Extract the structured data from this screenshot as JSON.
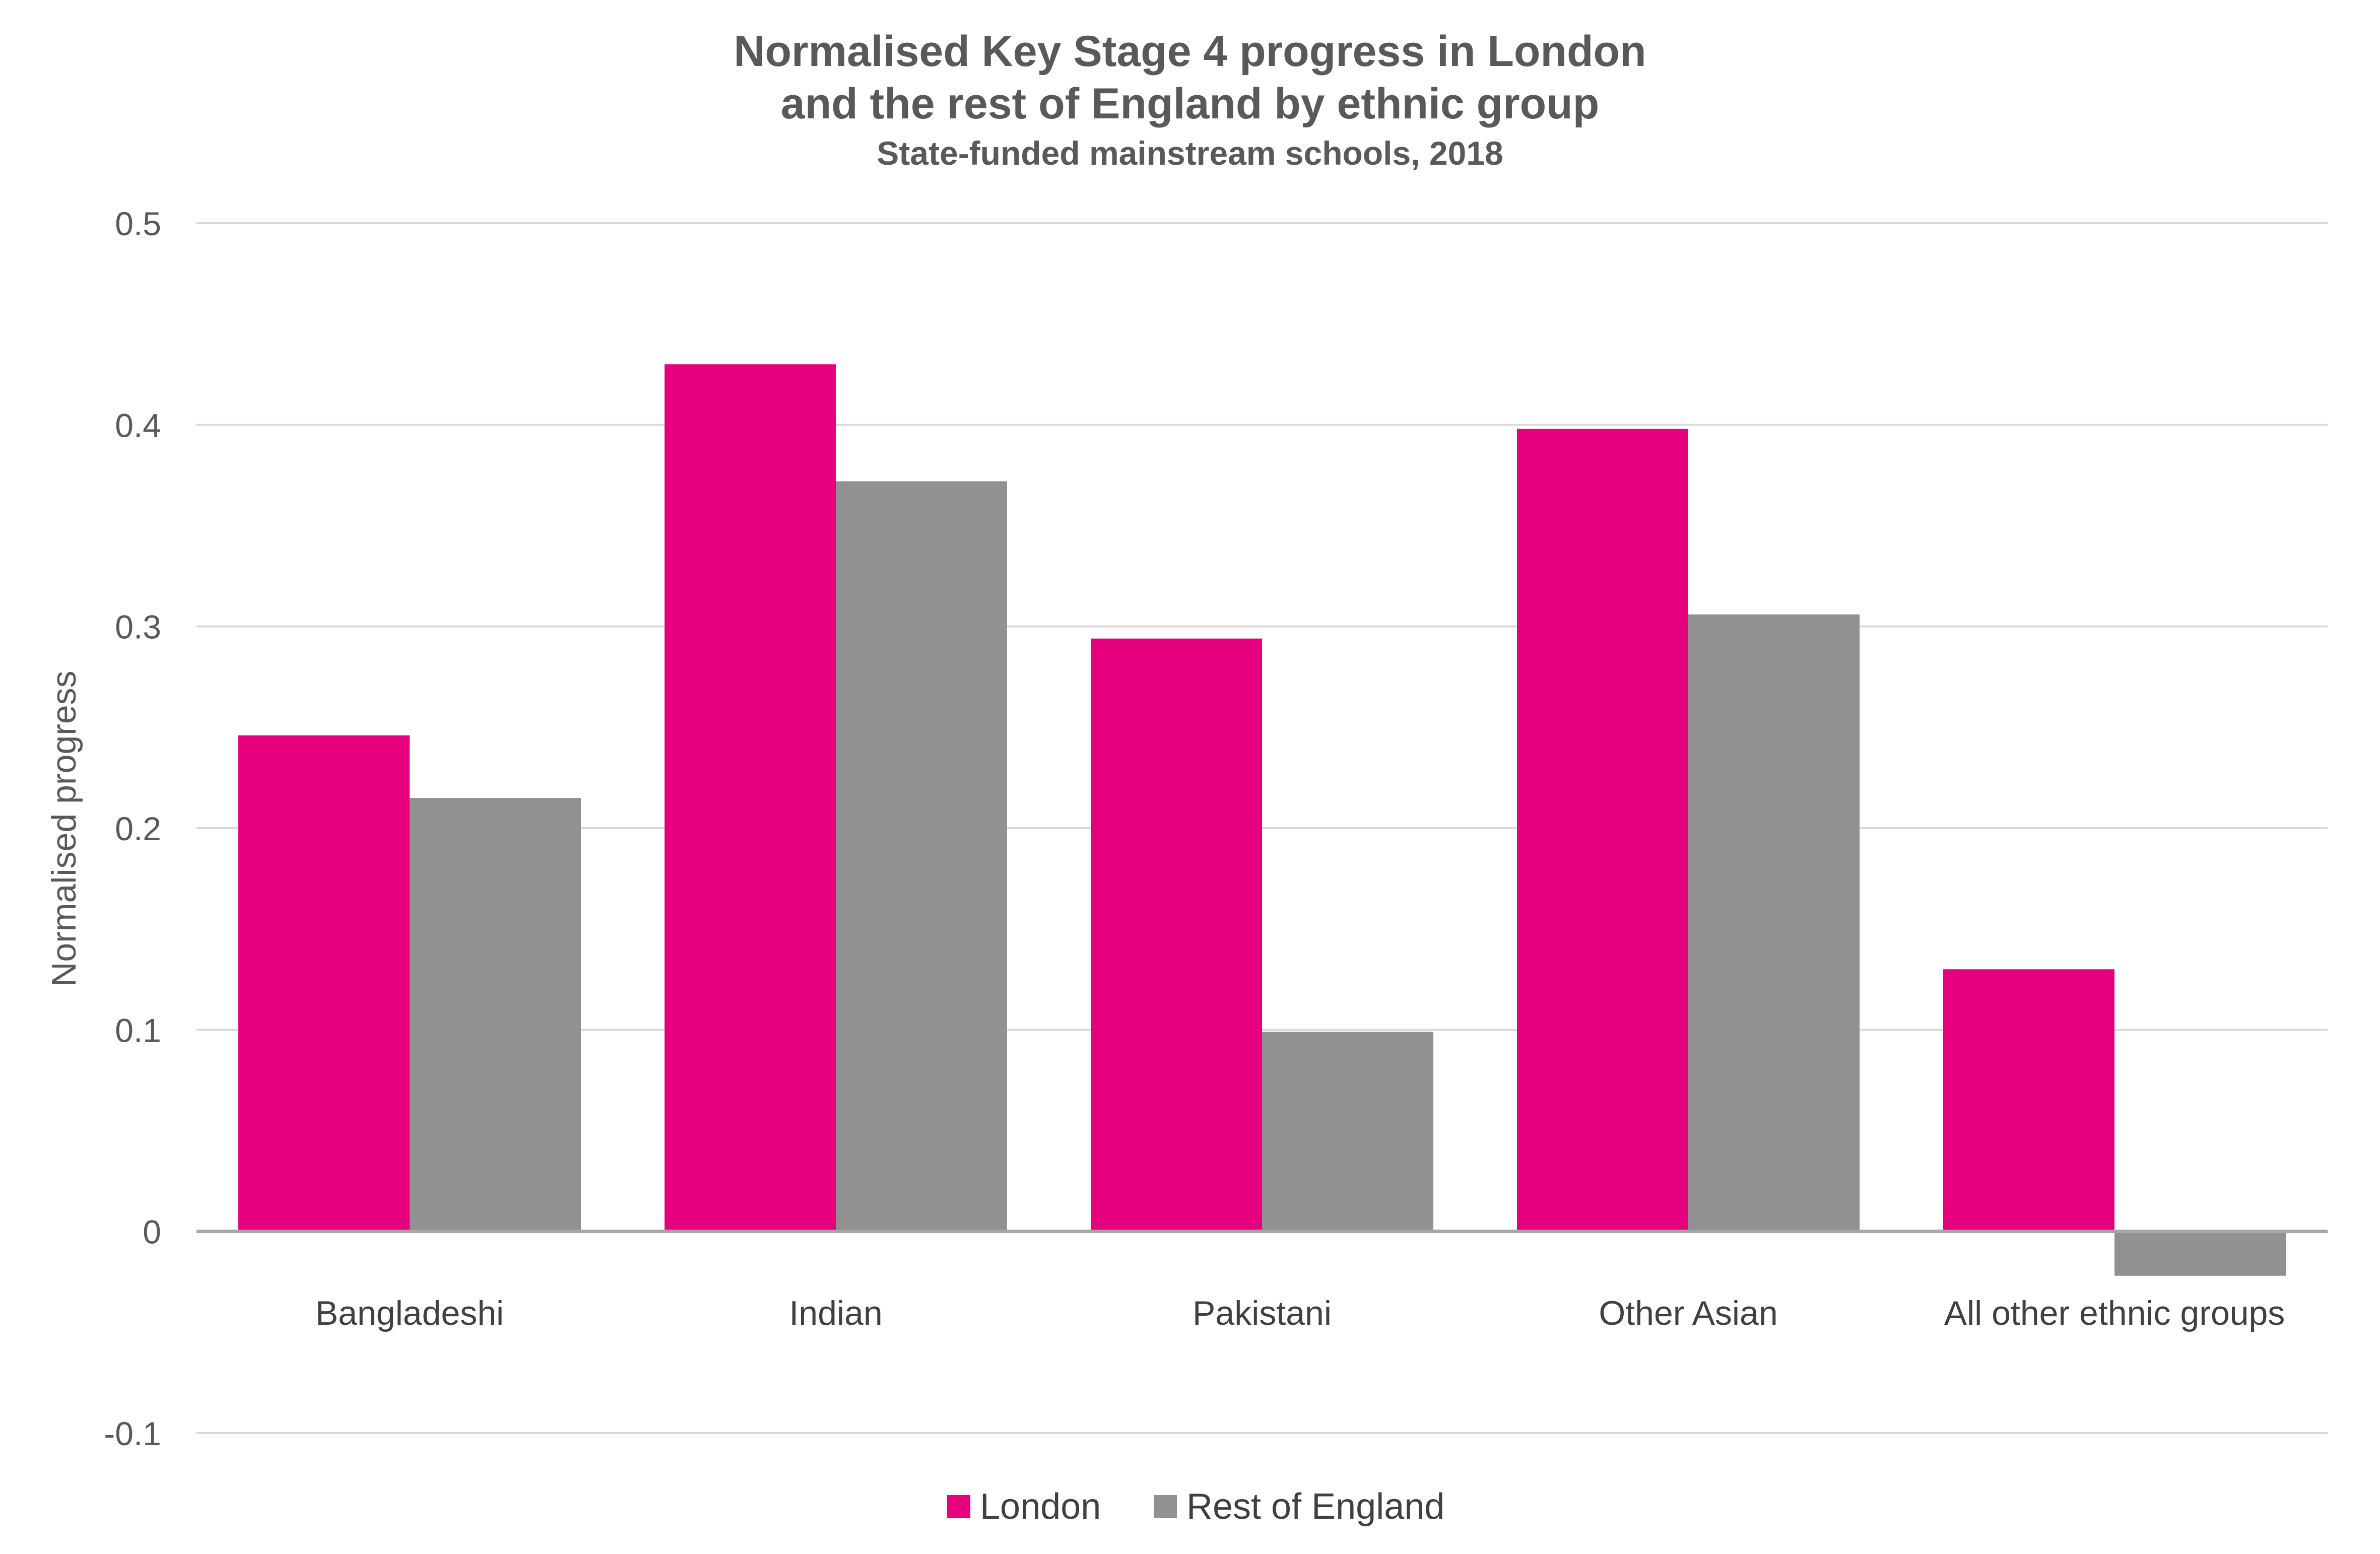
{
  "chart_data": {
    "type": "bar",
    "title_lines": [
      "Normalised Key Stage 4 progress in London",
      "and the rest of England by ethnic group"
    ],
    "subtitle": "State-funded mainstream schools, 2018",
    "xlabel": "",
    "ylabel": "Normalised progress",
    "ylim": [
      -0.1,
      0.5
    ],
    "yticks": [
      0.5,
      0.4,
      0.3,
      0.2,
      0.1,
      0,
      -0.1
    ],
    "ytick_labels": [
      "0.5",
      "0.4",
      "0.3",
      "0.2",
      "0.1",
      "0",
      "-0.1"
    ],
    "grid": true,
    "legend_position": "bottom",
    "categories": [
      "Bangladeshi",
      "Indian",
      "Pakistani",
      "Other Asian",
      "All other ethnic groups"
    ],
    "series": [
      {
        "name": "London",
        "color": "#e6007e",
        "values": [
          0.246,
          0.43,
          0.294,
          0.398,
          0.13
        ]
      },
      {
        "name": "Rest of England",
        "color": "#919191",
        "values": [
          0.215,
          0.372,
          0.099,
          0.306,
          -0.022
        ]
      }
    ]
  }
}
